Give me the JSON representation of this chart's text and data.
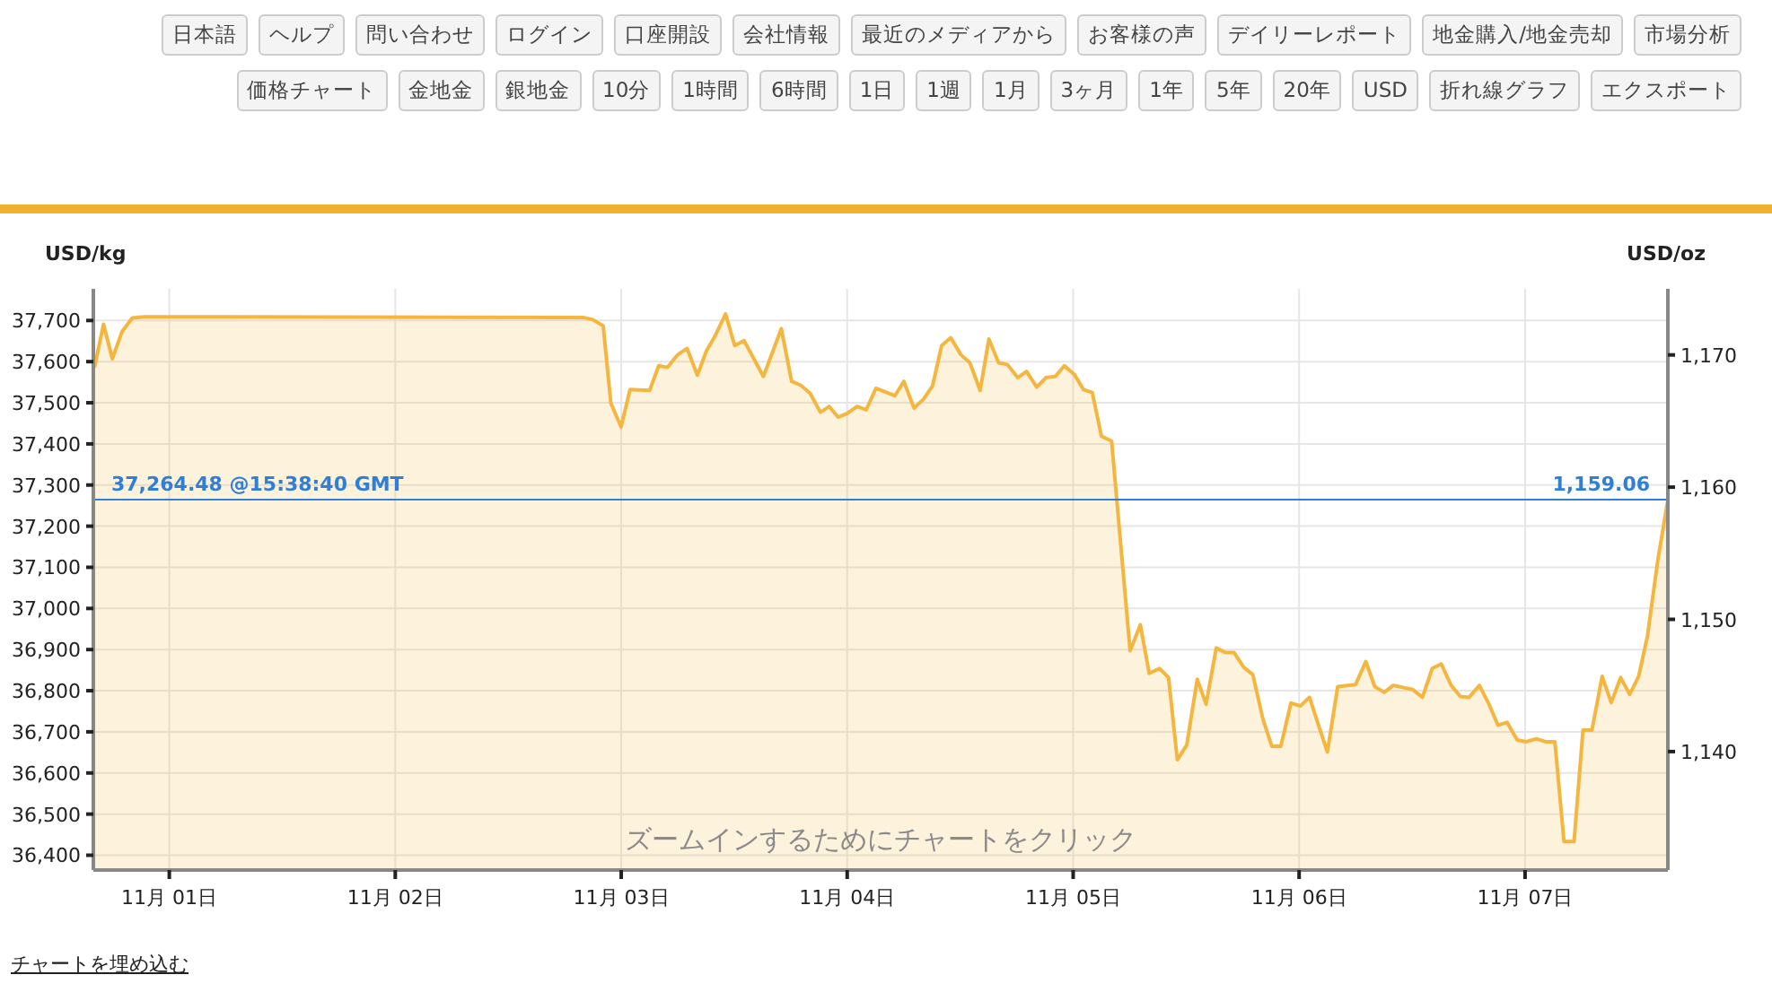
{
  "chart_data": {
    "type": "area",
    "ylabel": "USD/kg",
    "y2label": "USD/oz",
    "annotations": [
      "ズームインするためにチャートをクリック",
      "チャートを埋め込む",
      "日本語",
      "ヘルプ",
      "問い合わせ",
      "ログイン",
      "口座開設",
      "会社情報",
      "最近のメディアから",
      "お客様の声",
      "デイリーレポート",
      "地金購入/地金売却",
      "市場分析",
      "価格チャート",
      "金地金",
      "銀地金",
      "10分",
      "1時間",
      "6時間",
      "1日",
      "1週",
      "1月",
      "3ヶ月",
      "1年",
      "5年",
      "20年",
      "USD",
      "折れ線グラフ",
      "エクスポート",
      {
        "text": "1,159.06",
        "x": "--11-07T15:10",
        "y": 37264.48
      }
    ],
    "x": [
      "--10-31T16:03",
      "--10-31T17:01",
      "--10-31T17:57",
      "--10-31T18:59",
      "--10-31T20:04",
      "--10-31T21:20",
      "--11-02T20:02",
      "--11-02T21:00",
      "--11-02T22:05",
      "--11-02T22:54",
      "--11-02T23:59",
      "--11-03T00:56",
      "--11-03T03:01",
      "--11-03T03:59",
      "--11-03T04:55",
      "--11-03T06:00",
      "--11-03T07:00",
      "--11-03T08:05",
      "--11-03T09:03",
      "--11-03T09:59",
      "--11-03T11:05",
      "--11-03T12:03",
      "--11-03T13:03",
      "--11-03T15:06",
      "--11-03T17:00",
      "--11-03T18:06",
      "--11-03T19:06",
      "--11-03T20:04",
      "--11-03T21:09",
      "--11-03T22:06",
      "--11-03T23:02",
      "--11-04T00:00",
      "--11-04T01:03",
      "--11-04T02:01",
      "--11-04T03:03",
      "--11-04T05:04",
      "--11-04T06:01",
      "--11-04T07:06",
      "--11-04T08:07",
      "--11-04T09:04",
      "--11-04T10:02",
      "--11-04T11:00",
      "--11-04T12:04",
      "--11-04T13:02",
      "--11-04T14:07",
      "--11-04T15:03",
      "--11-04T16:05",
      "--11-04T17:01",
      "--11-04T18:07",
      "--11-04T19:03",
      "--11-04T20:08",
      "--11-04T21:06",
      "--11-04T22:06",
      "--11-04T23:04",
      "--11-05T00:09",
      "--11-05T01:06",
      "--11-05T02:02",
      "--11-05T03:00",
      "--11-05T04:05",
      "--11-05T06:03",
      "--11-05T07:08",
      "--11-05T08:05",
      "--11-05T09:10",
      "--11-05T10:08",
      "--11-05T11:04",
      "--11-05T12:04",
      "--11-05T13:11",
      "--11-05T14:07",
      "--11-05T15:12",
      "--11-05T16:09",
      "--11-05T17:05",
      "--11-05T18:07",
      "--11-05T19:05",
      "--11-05T20:10",
      "--11-05T21:06",
      "--11-05T22:03",
      "--11-05T23:08",
      "--11-06T00:09",
      "--11-06T01:06",
      "--11-06T02:04",
      "--11-06T03:00",
      "--11-06T04:06",
      "--11-06T06:00",
      "--11-06T07:05",
      "--11-06T08:02",
      "--11-06T09:03",
      "--11-06T10:00",
      "--11-06T12:03",
      "--11-06T13:06",
      "--11-06T14:08",
      "--11-06T15:06",
      "--11-06T16:09",
      "--11-06T17:07",
      "--11-06T18:04",
      "--11-06T19:09",
      "--11-06T20:10",
      "--11-06T21:07",
      "--11-06T22:05",
      "--11-06T23:10",
      "--11-07T00:07",
      "--11-07T01:12",
      "--11-07T02:10",
      "--11-07T03:10",
      "--11-07T04:08",
      "--11-07T05:12",
      "--11-07T06:09",
      "--11-07T07:06",
      "--11-07T08:11",
      "--11-07T09:09",
      "--11-07T10:09",
      "--11-07T11:07",
      "--11-07T12:04",
      "--11-07T13:00",
      "--11-07T14:05",
      "--11-07T15:10"
    ],
    "series": [
      {
        "color": "#f4b63f",
        "values": [
          37586,
          37691,
          37607,
          37673,
          37706,
          37709,
          37707,
          37702,
          37687,
          37499,
          37441,
          37532,
          37530,
          37590,
          37586,
          37617,
          37632,
          37567,
          37626,
          37663,
          37716,
          37639,
          37651,
          37564,
          37680,
          37552,
          37542,
          37523,
          37477,
          37491,
          37465,
          37474,
          37491,
          37483,
          37535,
          37517,
          37552,
          37487,
          37509,
          37541,
          37639,
          37658,
          37617,
          37597,
          37530,
          37655,
          37597,
          37593,
          37561,
          37576,
          37538,
          37561,
          37564,
          37590,
          37568,
          37532,
          37525,
          37419,
          37407,
          36897,
          36960,
          36842,
          36854,
          36832,
          36632,
          36668,
          36828,
          36767,
          36904,
          36893,
          36893,
          36857,
          36839,
          36730,
          36665,
          36665,
          36770,
          36763,
          36784,
          36716,
          36651,
          36810,
          36815,
          36871,
          36810,
          36796,
          36813,
          36803,
          36784,
          36854,
          36865,
          36813,
          36786,
          36784,
          36813,
          36767,
          36716,
          36723,
          36680,
          36676,
          36683,
          36676,
          36676,
          36433,
          36433,
          36704,
          36704,
          36835,
          36771,
          36832,
          36791,
          36835,
          36933,
          37115,
          37264
        ]
      }
    ],
    "xlim": [
      "--10-31T15:56",
      "--11-07T15:10"
    ],
    "xticks": [
      {
        "value": "--11-01",
        "label": "11月 01日"
      },
      {
        "value": "--11-02",
        "label": "11月 02日"
      },
      {
        "value": "--11-03",
        "label": "11月 03日"
      },
      {
        "value": "--11-04",
        "label": "11月 04日"
      },
      {
        "value": "--11-05",
        "label": "11月 05日"
      },
      {
        "value": "--11-06",
        "label": "11月 06日"
      },
      {
        "value": "--11-07",
        "label": "11月 07日"
      }
    ],
    "ylim": [
      36364,
      37777
    ],
    "yticks": [
      {
        "value": 36400,
        "label": "36,400"
      },
      {
        "value": 36500,
        "label": "36,500"
      },
      {
        "value": 36600,
        "label": "36,600"
      },
      {
        "value": 36700,
        "label": "36,700"
      },
      {
        "value": 36800,
        "label": "36,800"
      },
      {
        "value": 36900,
        "label": "36,900"
      },
      {
        "value": 37000,
        "label": "37,000"
      },
      {
        "value": 37100,
        "label": "37,100"
      },
      {
        "value": 37200,
        "label": "37,200"
      },
      {
        "value": 37300,
        "label": "37,300"
      },
      {
        "value": 37400,
        "label": "37,400"
      },
      {
        "value": 37500,
        "label": "37,500"
      },
      {
        "value": 37600,
        "label": "37,600"
      },
      {
        "value": 37700,
        "label": "37,700"
      }
    ],
    "y2lim": [
      1131.04,
      1175.0
    ],
    "y2ticks": [
      {
        "value": 1140,
        "label": "1,140"
      },
      {
        "value": 1150,
        "label": "1,150"
      },
      {
        "value": 1160,
        "label": "1,160"
      },
      {
        "value": 1170,
        "label": "1,170"
      }
    ],
    "ref_lines": [
      {
        "axis": "y",
        "value": 37264.48,
        "label": "37,264.48 @15:38:40 GMT",
        "color": "#2f7ed8"
      }
    ],
    "grid": true
  }
}
